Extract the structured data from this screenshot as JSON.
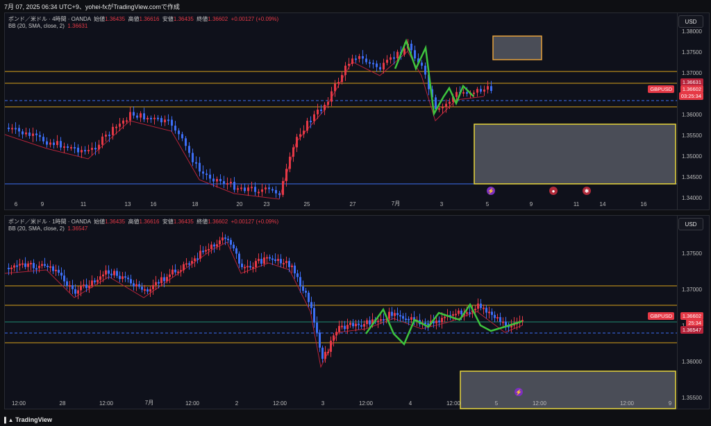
{
  "header": {
    "title": "7月 07, 2025 06:34 UTC+9、yohei-fxがTradingView.comで作成"
  },
  "pane1": {
    "legend_symbol": "ポンド／米ドル · 4時間 · OANDA",
    "ohlc": {
      "open_label": "始値",
      "open": "1.36435",
      "high_label": "高値",
      "high": "1.36616",
      "low_label": "安値",
      "low": "1.36435",
      "close_label": "終値",
      "close": "1.36602",
      "change": "+0.00127 (+0.09%)"
    },
    "bb_label": "BB (20, SMA, close, 2)",
    "bb_value": "1.36631",
    "currency": "USD",
    "y_ticks": [
      "1.38000",
      "1.37500",
      "1.37000",
      "1.36500",
      "1.36000",
      "1.35500",
      "1.35000",
      "1.34500",
      "1.34000"
    ],
    "x_ticks": [
      "6",
      "9",
      "11",
      "13",
      "16",
      "18",
      "20",
      "23",
      "25",
      "27",
      "7月",
      "3",
      "5",
      "9",
      "11",
      "14",
      "16"
    ],
    "price_tags": {
      "bb": "1.36631",
      "symbol": "GBPUSD",
      "price": "1.36602",
      "timer": "03:25:34"
    }
  },
  "pane2": {
    "legend_symbol": "ポンド／米ドル · 1時間 · OANDA",
    "ohlc": {
      "open_label": "始値",
      "open": "1.36435",
      "high_label": "高値",
      "high": "1.36616",
      "low_label": "安値",
      "low": "1.36435",
      "close_label": "終値",
      "close": "1.36602",
      "change": "+0.00127 (+0.09%)"
    },
    "bb_label": "BB (20, SMA, close, 2)",
    "bb_value": "1.36547",
    "currency": "USD",
    "y_ticks": [
      "1.37500",
      "1.37000",
      "1.36500",
      "1.36000",
      "1.35500"
    ],
    "x_ticks": [
      "12:00",
      "28",
      "12:00",
      "7月",
      "12:00",
      "2",
      "12:00",
      "3",
      "12:00",
      "4",
      "12:00",
      "5",
      "12:00",
      "12:00",
      "9"
    ],
    "price_tags": {
      "symbol": "GBPUSD",
      "price": "1.36602",
      "timer": "25:34",
      "bb": "1.36547"
    }
  },
  "colors": {
    "up": "#e63946",
    "down": "#3d6ef5",
    "level": "#d9a21b",
    "bb": "#b5233a",
    "wave": "#3ec43e",
    "dash": "#3d6ef5",
    "zone_orange": "#e8a33c",
    "zone_yellow": "#e8d63c",
    "box_fill": "#4a4d57"
  },
  "footer": {
    "brand": "TradingView",
    "brand_icon": "tradingview-logo"
  }
}
